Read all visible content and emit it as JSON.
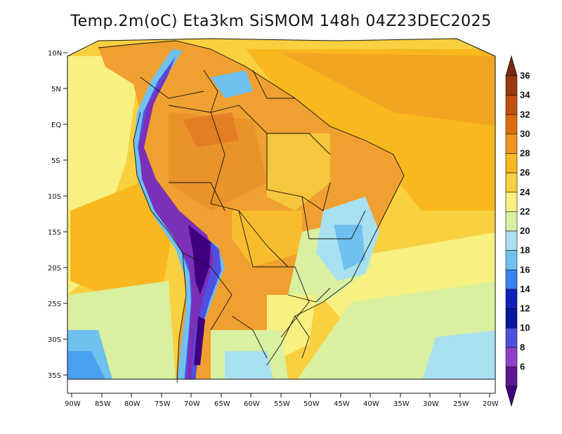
{
  "title": "Temp.2m(oC) Eta3km SiSMOM 148h 04Z23DEC2025",
  "map": {
    "variable": "2 m air temperature",
    "unit": "oC",
    "lat_labels": [
      "10N",
      "5N",
      "EQ",
      "5S",
      "10S",
      "15S",
      "20S",
      "25S",
      "30S",
      "35S"
    ],
    "lon_labels": [
      "90W",
      "85W",
      "80W",
      "75W",
      "70W",
      "65W",
      "60W",
      "55W",
      "50W",
      "45W",
      "40W",
      "35W",
      "30W",
      "25W",
      "20W"
    ]
  },
  "colorbar": {
    "labels": [
      "36",
      "34",
      "32",
      "30",
      "28",
      "26",
      "24",
      "22",
      "20",
      "18",
      "16",
      "14",
      "12",
      "10",
      "8",
      "6"
    ],
    "colors": [
      "#7a2a10",
      "#9a3a0c",
      "#c0500e",
      "#e06a12",
      "#f0961e",
      "#f8b81e",
      "#f8d040",
      "#f8f080",
      "#d8f0a0",
      "#a8e0f0",
      "#70c0f0",
      "#3a80f0",
      "#1020b8",
      "#0818a0",
      "#5050e0",
      "#9040c8",
      "#601890",
      "#400080"
    ]
  }
}
